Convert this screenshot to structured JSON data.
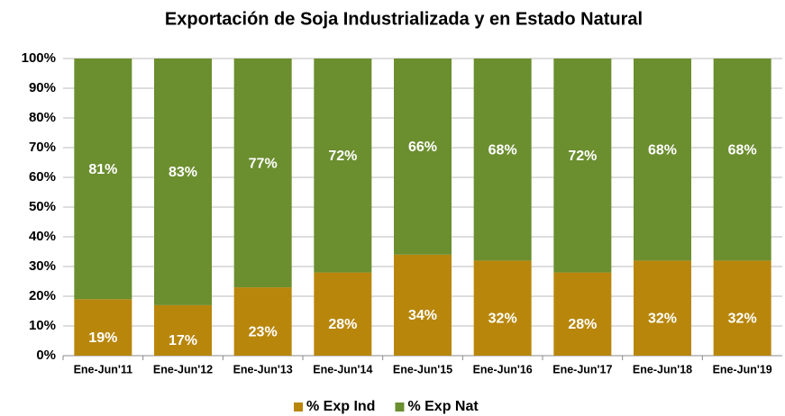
{
  "chart_data": {
    "type": "stacked_bar",
    "title": "Exportación de Soja Industrializada y en Estado Natural",
    "categories": [
      "Ene-Jun'11",
      "Ene-Jun'12",
      "Ene-Jun'13",
      "Ene-Jun'14",
      "Ene-Jun'15",
      "Ene-Jun'16",
      "Ene-Jun'17",
      "Ene-Jun'18",
      "Ene-Jun'19"
    ],
    "series": [
      {
        "name": "% Exp Ind",
        "color": "#b8860b",
        "values": [
          19,
          17,
          23,
          28,
          34,
          32,
          28,
          32,
          32
        ],
        "value_labels": [
          "19%",
          "17%",
          "23%",
          "28%",
          "34%",
          "32%",
          "28%",
          "32%",
          "32%"
        ]
      },
      {
        "name": "% Exp Nat",
        "color": "#6b8e2f",
        "values": [
          81,
          83,
          77,
          72,
          66,
          68,
          72,
          68,
          68
        ],
        "value_labels": [
          "81%",
          "83%",
          "77%",
          "72%",
          "66%",
          "68%",
          "72%",
          "68%",
          "68%"
        ]
      }
    ],
    "ylim": [
      0,
      100
    ],
    "yticks": [
      {
        "value": 0,
        "label": "0%"
      },
      {
        "value": 10,
        "label": "10%"
      },
      {
        "value": 20,
        "label": "20%"
      },
      {
        "value": 30,
        "label": "30%"
      },
      {
        "value": 40,
        "label": "40%"
      },
      {
        "value": 50,
        "label": "50%"
      },
      {
        "value": 60,
        "label": "60%"
      },
      {
        "value": 70,
        "label": "70%"
      },
      {
        "value": 80,
        "label": "80%"
      },
      {
        "value": 90,
        "label": "90%"
      },
      {
        "value": 100,
        "label": "100%"
      }
    ],
    "grid": true,
    "legend": "bottom"
  }
}
